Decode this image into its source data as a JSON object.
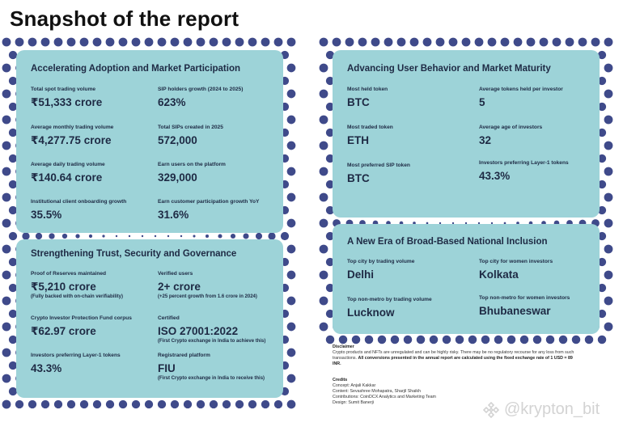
{
  "page_title": "Snapshot of the report",
  "cards": [
    {
      "title": "Accelerating Adoption and Market Participation",
      "stats": [
        {
          "label": "Total spot trading volume",
          "value": "₹51,333 crore"
        },
        {
          "label": "SIP holders growth (2024 to 2025)",
          "value": "623%"
        },
        {
          "label": "Average monthly trading volume",
          "value": "₹4,277.75 crore"
        },
        {
          "label": "Total SIPs created in 2025",
          "value": "572,000"
        },
        {
          "label": "Average daily trading volume",
          "value": "₹140.64 crore"
        },
        {
          "label": "Earn users on the platform",
          "value": "329,000"
        },
        {
          "label": "Institutional client onboarding growth",
          "value": "35.5%"
        },
        {
          "label": "Earn customer participation growth YoY",
          "value": "31.6%"
        }
      ]
    },
    {
      "title": "Strengthening Trust, Security and Governance",
      "stats": [
        {
          "label": "Proof of Reserves maintained",
          "value": "₹5,210 crore",
          "note": "(Fully backed with on-chain verifiability)"
        },
        {
          "label": "Verified users",
          "value": "2+ crore",
          "note": "(+25 percent growth from 1.6 crore in 2024)"
        },
        {
          "label": "Crypto Investor Protection Fund corpus",
          "value": "₹62.97 crore"
        },
        {
          "label": "Certified",
          "value": "ISO 27001:2022",
          "note": "(First Crypto exchange in India to achieve this)"
        },
        {
          "label": "Investors preferring Layer-1 tokens",
          "value": "43.3%"
        },
        {
          "label": "Registrared platform",
          "value": "FIU",
          "note": "(First Crypto exchange in India to receive this)"
        }
      ]
    },
    {
      "title": "Advancing User Behavior and Market Maturity",
      "stats": [
        {
          "label": "Most held token",
          "value": "BTC"
        },
        {
          "label": "Average tokens held per investor",
          "value": "5"
        },
        {
          "label": "Most traded token",
          "value": "ETH"
        },
        {
          "label": "Average age of investors",
          "value": "32"
        },
        {
          "label": "Most preferred SIP token",
          "value": "BTC"
        },
        {
          "label": "Investors preferring Layer-1 tokens",
          "value": "43.3%"
        }
      ]
    },
    {
      "title": "A New Era of Broad-Based National Inclusion",
      "stats": [
        {
          "label": "Top city by trading volume",
          "value": "Delhi"
        },
        {
          "label": "Top city for women investors",
          "value": "Kolkata"
        },
        {
          "label": "Top non-metro by trading volume",
          "value": "Lucknow"
        },
        {
          "label": "Top non-metro for women investors",
          "value": "Bhubaneswar"
        }
      ]
    }
  ],
  "disclaimer": {
    "heading": "Disclaimer",
    "text": "Crypto products and NFTs are unregulated and can be highly risky. There may be no regulatory recourse for any loss from such transactions.",
    "bold_text": "All conversions presented in the annual report are calculated using the fixed exchange rate of 1 USD = 89 INR."
  },
  "credits": {
    "heading": "Credits",
    "lines": [
      "Concept: Anjali Kakkar",
      "Content: Sevashree Mohapatra, Sharjil Shaikh",
      "Contributions: CoinDCX Analytics and Marketing Team",
      "Design: Sumit Banerji"
    ]
  },
  "watermark": "@krypton_bit",
  "colors": {
    "card": "#9dd3d8",
    "dots": "#3f4a8a",
    "text": "#1e2a44"
  }
}
